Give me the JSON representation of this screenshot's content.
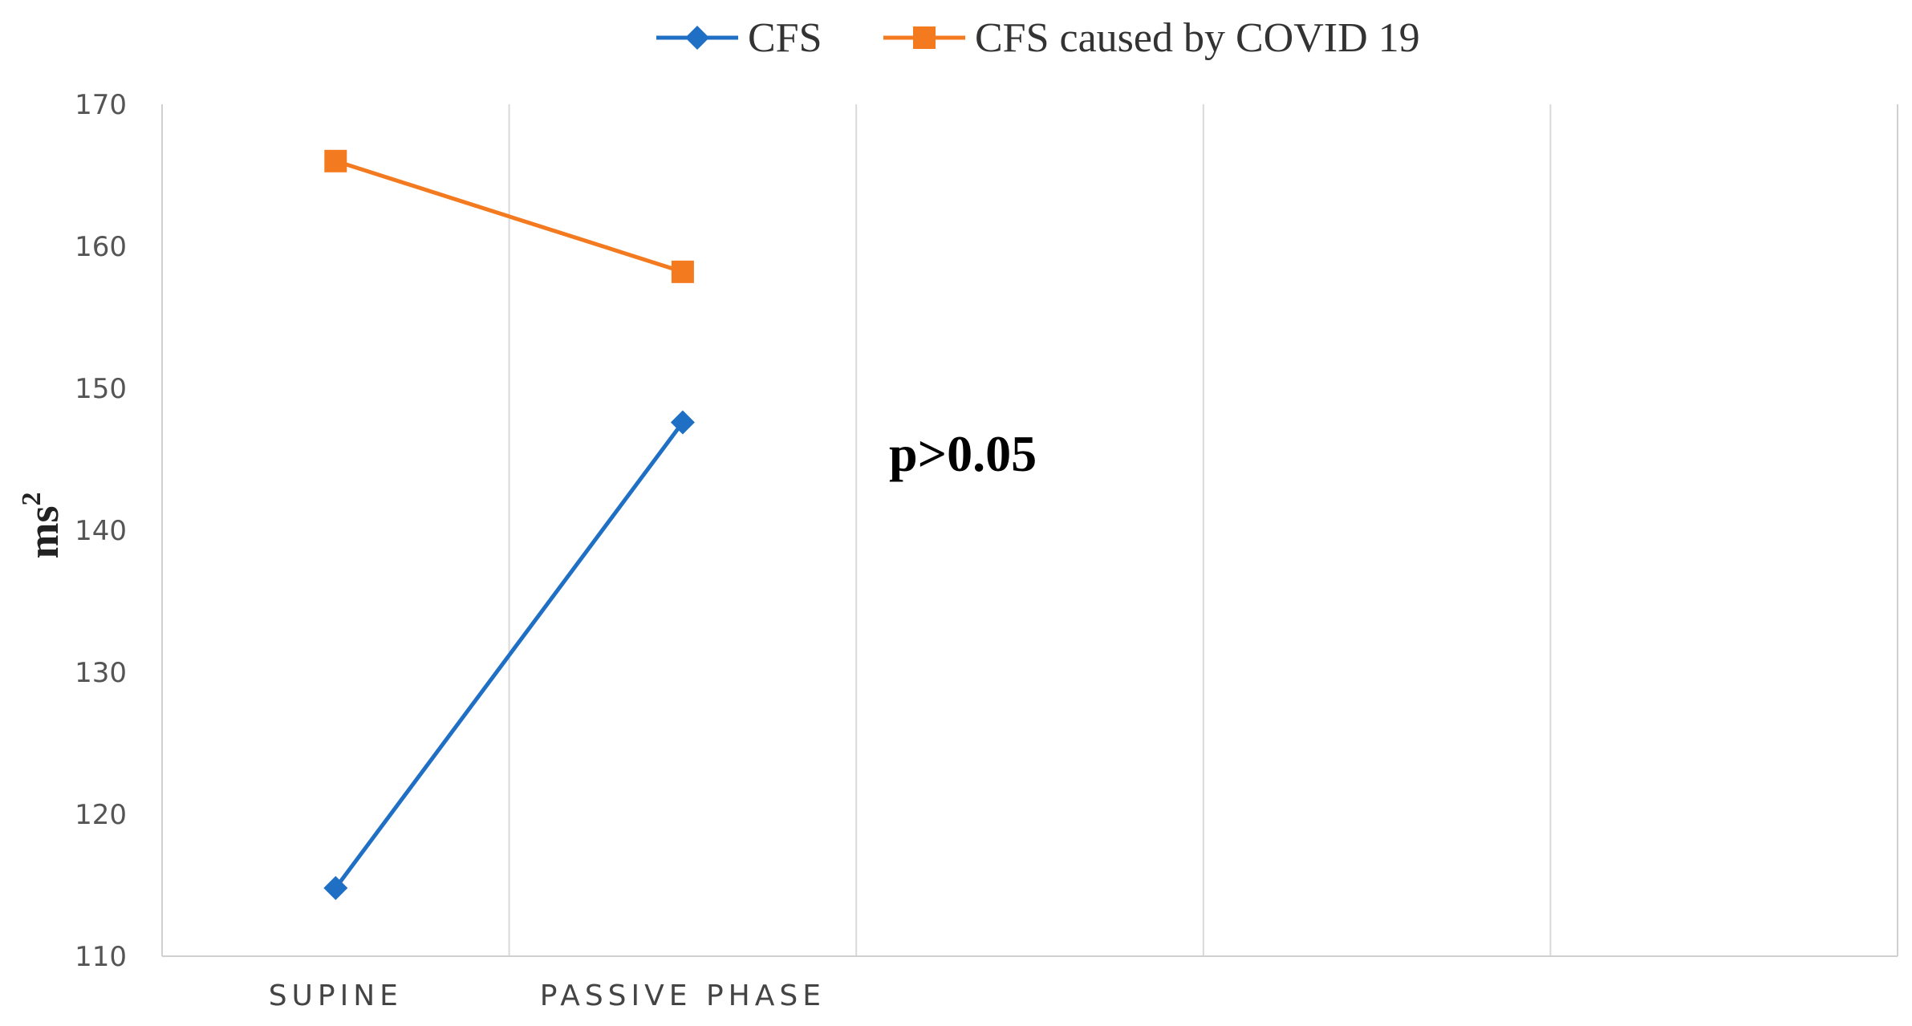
{
  "chart_data": {
    "type": "line",
    "title": "",
    "categories": [
      "SUPINE",
      "PASSIVE PHASE"
    ],
    "xlabel": "",
    "ylabel": "ms",
    "ylabel_superscript": "2",
    "ylim": [
      110,
      170
    ],
    "yticks": [
      110,
      120,
      130,
      140,
      150,
      160,
      170
    ],
    "grid": "vertical",
    "legend_position": "top-center",
    "annotation": "p>0.05",
    "series": [
      {
        "name": "CFS",
        "values": [
          114.8,
          147.6
        ],
        "color": "#1f6fc5",
        "marker": "diamond"
      },
      {
        "name": "CFS caused by COVID 19",
        "values": [
          166.0,
          158.2
        ],
        "color": "#f47a20",
        "marker": "square"
      }
    ]
  }
}
